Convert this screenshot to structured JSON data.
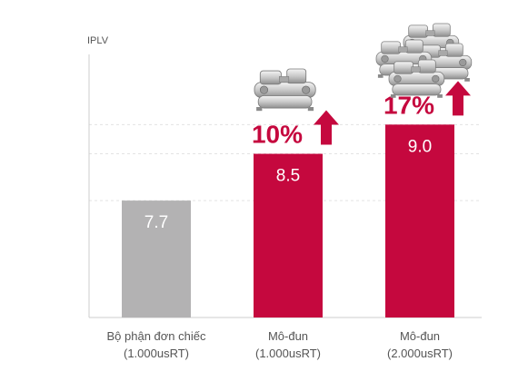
{
  "chart_data": {
    "type": "bar",
    "ylabel": "IPLV",
    "categories": [
      {
        "line1": "Bộ phận đơn chiếc",
        "line2": "(1.000usRT)"
      },
      {
        "line1": "Mô-đun",
        "line2": "(1.000usRT)"
      },
      {
        "line1": "Mô-đun",
        "line2": "(2.000usRT)"
      }
    ],
    "values": [
      7.7,
      8.5,
      9.0
    ],
    "value_labels": [
      "7.7",
      "8.5",
      "9.0"
    ],
    "increase_labels": [
      "",
      "10%",
      "17%"
    ],
    "ylim": [
      5.7,
      10.2
    ],
    "grid": true,
    "colors": {
      "baseline_bar": "#b3b2b3",
      "highlight_bar": "#c5083e",
      "increase_text": "#c5083e",
      "axis": "#cccccc",
      "grid": "#e3e3e3"
    },
    "icons": [
      "",
      "chiller-module-icon",
      "chiller-module-group-icon"
    ]
  }
}
